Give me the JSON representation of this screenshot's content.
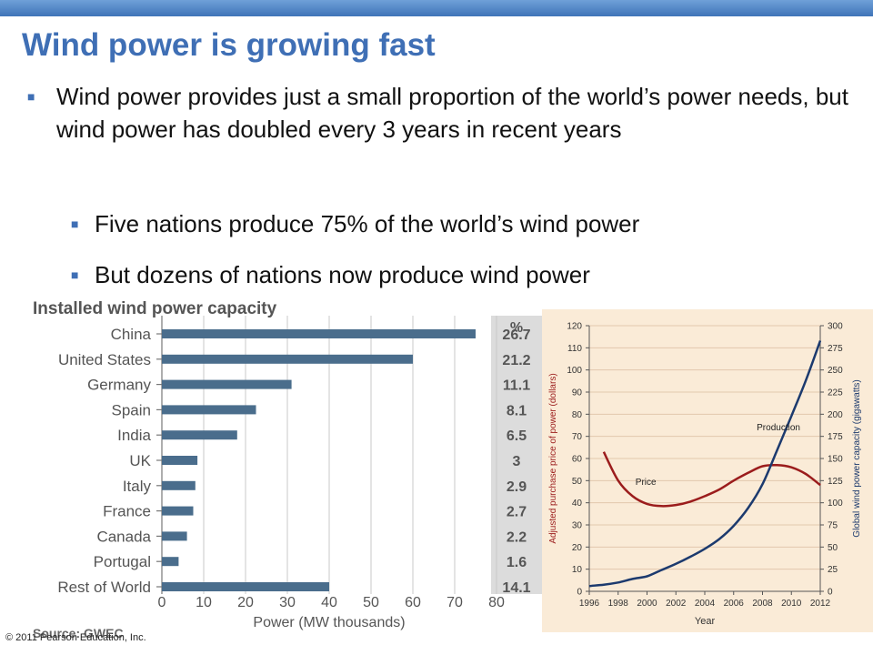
{
  "slide": {
    "title": "Wind power is growing fast",
    "bullets": [
      "Wind power provides just a small proportion of the world’s power needs, but wind power has doubled every 3 years in recent years",
      "Five nations produce 75% of the world’s wind power",
      "But dozens of nations now produce wind power"
    ],
    "copyright": "© 2011 Pearson Education, Inc."
  },
  "chart_data": [
    {
      "type": "bar",
      "title": "Installed wind power capacity",
      "xlabel": "Power (MW thousands)",
      "percent_header": "%",
      "source": "Source: GWEC",
      "categories": [
        "China",
        "United States",
        "Germany",
        "Spain",
        "India",
        "UK",
        "Italy",
        "France",
        "Canada",
        "Portugal",
        "Rest of World"
      ],
      "values": [
        75,
        60,
        31,
        22.5,
        18,
        8.5,
        8,
        7.5,
        6,
        4,
        40
      ],
      "percent_labels": [
        "26.7",
        "21.2",
        "11.1",
        "8.1",
        "6.5",
        "3",
        "2.9",
        "2.7",
        "2.2",
        "1.6",
        "14.1"
      ],
      "xlim": [
        0,
        80
      ],
      "xticks": [
        "0",
        "10",
        "20",
        "30",
        "40",
        "50",
        "60",
        "70",
        "80"
      ],
      "colors": {
        "bar": "#4a6d8c",
        "pct_bg": "#dcdcdc"
      }
    },
    {
      "type": "line",
      "xlabel": "Year",
      "ylabel_left": "Adjusted purchase price of power (dollars)",
      "ylabel_right": "Global wind power capacity (gigawatts)",
      "x_ticks": [
        "1996",
        "1998",
        "2000",
        "2002",
        "2004",
        "2006",
        "2008",
        "2010",
        "2012"
      ],
      "xlim": [
        1996,
        2012
      ],
      "ylim_left": [
        0,
        120
      ],
      "ylim_right": [
        0,
        300
      ],
      "left_ticks": [
        "0",
        "10",
        "20",
        "30",
        "40",
        "50",
        "60",
        "70",
        "80",
        "90",
        "100",
        "110",
        "120"
      ],
      "right_ticks": [
        "0",
        "25",
        "50",
        "75",
        "100",
        "125",
        "150",
        "175",
        "200",
        "225",
        "250",
        "275",
        "300"
      ],
      "series": [
        {
          "name": "Price",
          "axis": "left",
          "color": "#9b1c1c",
          "x": [
            1997,
            1998,
            1999,
            2000,
            2001,
            2002,
            2003,
            2004,
            2005,
            2006,
            2007,
            2008,
            2009,
            2010,
            2011,
            2012
          ],
          "y": [
            63,
            50,
            43,
            39.5,
            38.5,
            39,
            40.5,
            43,
            46,
            50,
            53.5,
            56.5,
            57,
            56,
            53,
            48
          ]
        },
        {
          "name": "Production",
          "axis": "right",
          "color": "#1c3a6e",
          "x": [
            1996,
            1997,
            1998,
            1999,
            2000,
            2001,
            2002,
            2003,
            2004,
            2005,
            2006,
            2007,
            2008,
            2009,
            2010,
            2011,
            2012
          ],
          "y": [
            6,
            7.5,
            10,
            14,
            17,
            24,
            31,
            39,
            48,
            59,
            74,
            94,
            121,
            159,
            198,
            238,
            283
          ]
        }
      ],
      "colors": {
        "background": "#faebd7",
        "grid": "#e2c8ad"
      }
    }
  ]
}
